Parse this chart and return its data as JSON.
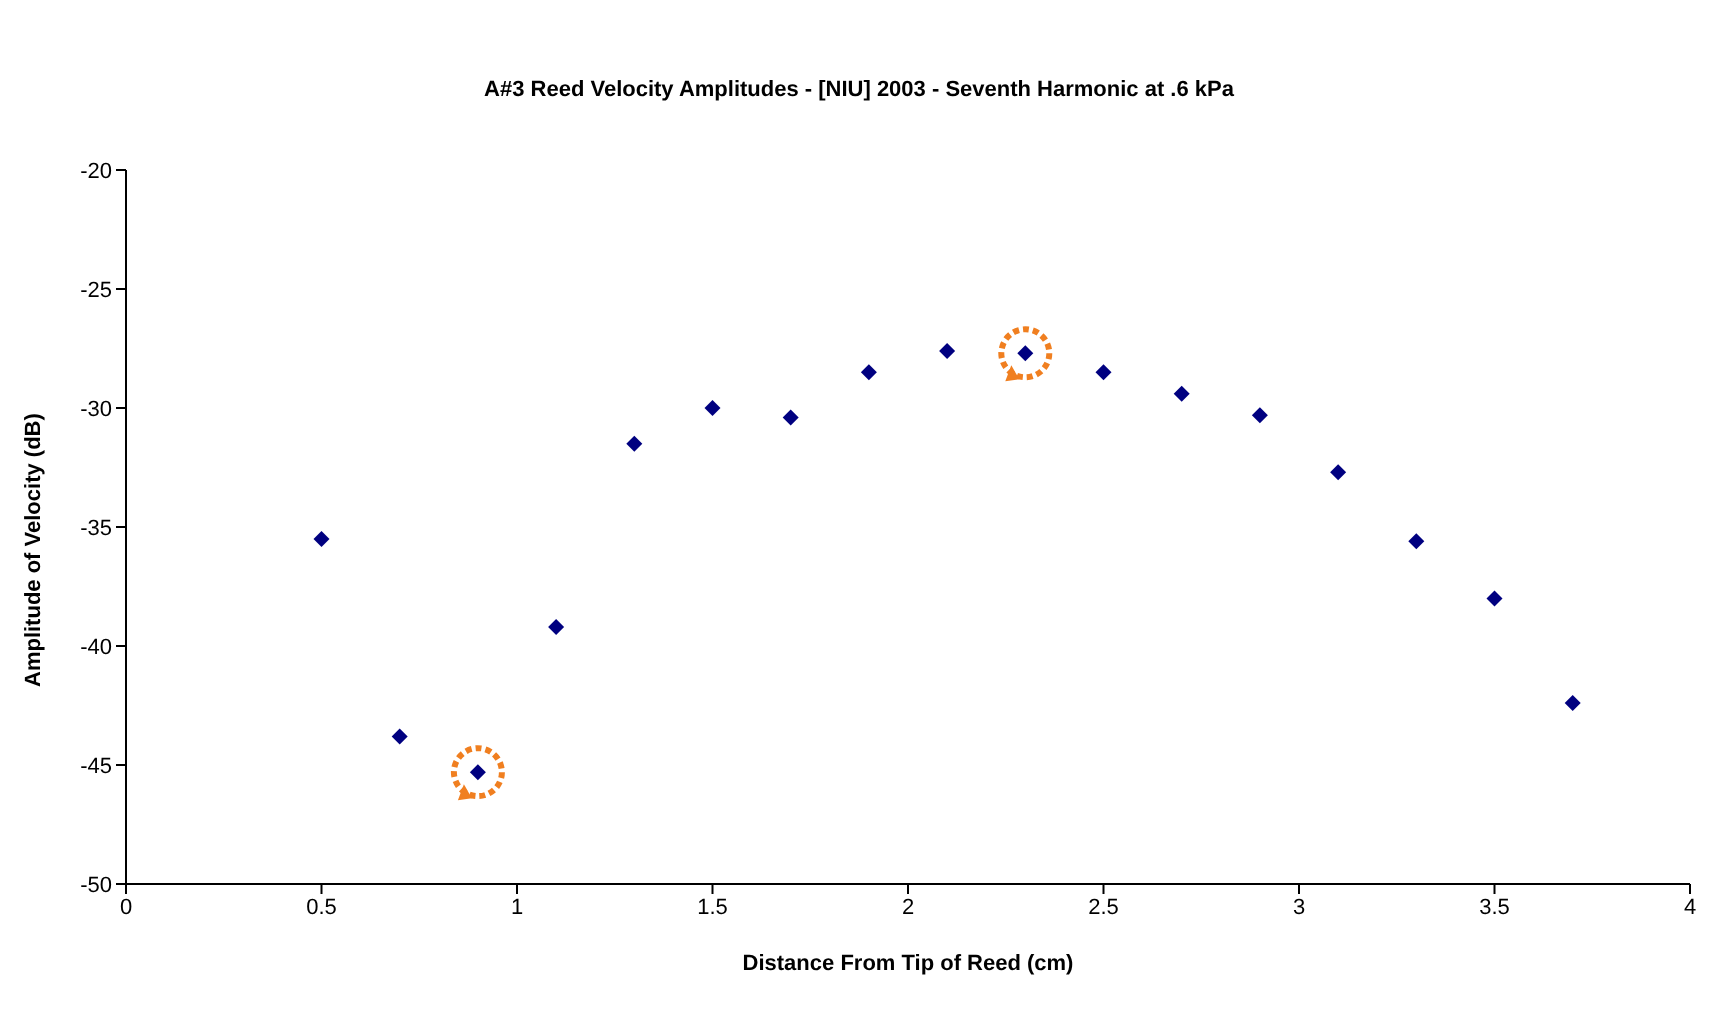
{
  "chart_data": {
    "type": "scatter",
    "title": "A#3 Reed Velocity Amplitudes - [NIU] 2003 - Seventh Harmonic at .6 kPa",
    "xlabel": "Distance From Tip of Reed (cm)",
    "ylabel": "Amplitude of Velocity (dB)",
    "x": [
      0.5,
      0.7,
      0.9,
      1.1,
      1.3,
      1.5,
      1.7,
      1.9,
      2.1,
      2.3,
      2.5,
      2.7,
      2.9,
      3.1,
      3.3,
      3.5,
      3.7
    ],
    "series": [
      {
        "color": "#000080",
        "values": [
          -35.5,
          -43.8,
          -45.3,
          -39.2,
          -31.5,
          -30.0,
          -30.4,
          -28.5,
          -27.6,
          -27.7,
          -28.5,
          -29.4,
          -30.3,
          -32.7,
          -35.6,
          -38.0,
          -42.4
        ]
      }
    ],
    "xlim": [
      0,
      4
    ],
    "xticks": [
      0,
      0.5,
      1,
      1.5,
      2,
      2.5,
      3,
      3.5,
      4
    ],
    "ylim": [
      -50,
      -20
    ],
    "yticks": [
      -50,
      -45,
      -40,
      -35,
      -30,
      -25,
      -20
    ],
    "grid": false,
    "legend": false,
    "marker": "diamond"
  }
}
